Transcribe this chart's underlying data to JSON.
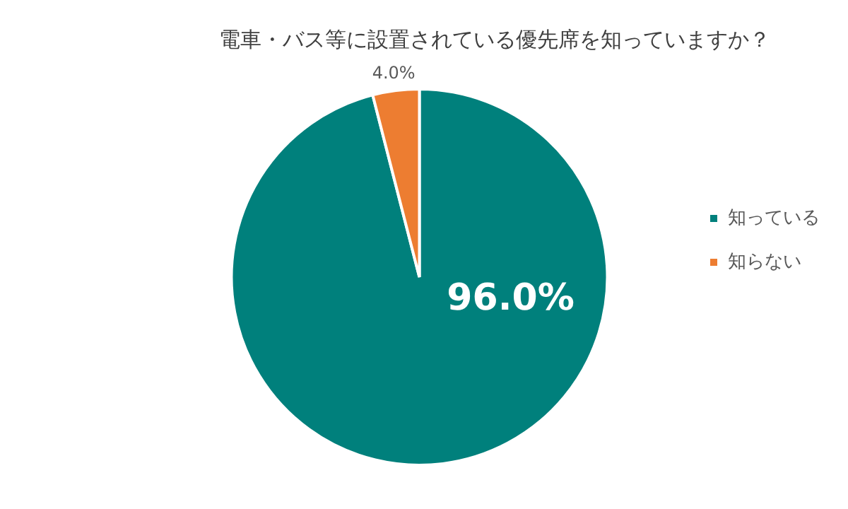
{
  "chart_data": {
    "type": "pie",
    "title": "電車・バス等に設置されている優先席を知っていますか？",
    "categories": [
      "知っている",
      "知らない"
    ],
    "values": [
      96.0,
      4.0
    ],
    "colors": [
      "#00807c",
      "#ed7d31"
    ],
    "value_labels": [
      "96.0%",
      "4.0%"
    ],
    "legend": "right"
  }
}
